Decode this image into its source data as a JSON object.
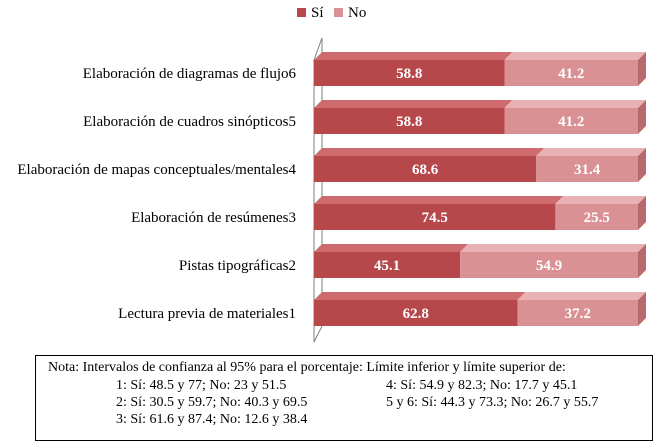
{
  "chart_data": {
    "type": "bar",
    "orientation": "horizontal",
    "stacked": true,
    "percent": true,
    "categories": [
      "Elaboración de diagramas de flujo6",
      "Elaboración de cuadros sinópticos5",
      "Elaboración de mapas conceptuales/mentales4",
      "Elaboración de resúmenes3",
      "Pistas tipográficas2",
      "Lectura previa de materiales1"
    ],
    "series": [
      {
        "name": "Sí",
        "values": [
          58.8,
          58.8,
          68.6,
          74.5,
          45.1,
          62.8
        ]
      },
      {
        "name": "No",
        "values": [
          41.2,
          41.2,
          31.4,
          25.5,
          54.9,
          37.2
        ]
      }
    ],
    "value_labels": {
      "Sí": [
        "58.8",
        "58.8",
        "68.6",
        "74.5",
        "45.1",
        "62.8"
      ],
      "No": [
        "41.2",
        "41.2",
        "31.4",
        "25.5",
        "54.9",
        "37.2"
      ]
    },
    "xlim": [
      0,
      100
    ],
    "legend": "top",
    "grid": false,
    "style": "3d"
  },
  "colors": {
    "si": "#b6474b",
    "si_top": "#cd6b6e",
    "si_side": "#8e3337",
    "no": "#d99194",
    "no_top": "#e9b1b3",
    "no_side": "#b9686b",
    "wall": "#ffffff",
    "wall_edge": "#7f7f7f"
  },
  "note": {
    "title": "Nota: Intervalos de confianza al 95% para el porcentaje: Límite inferior y límite superior de:",
    "items": [
      "1: Sí: 48.5 y 77; No: 23 y 51.5",
      "2: Sí: 30.5 y 59.7; No: 40.3 y 69.5",
      "3: Sí: 61.6 y 87.4; No: 12.6 y 38.4",
      "4: Sí: 54.9 y 82.3; No: 17.7 y 45.1",
      "5 y 6: Sí: 44.3 y 73.3; No: 26.7 y 55.7"
    ]
  }
}
